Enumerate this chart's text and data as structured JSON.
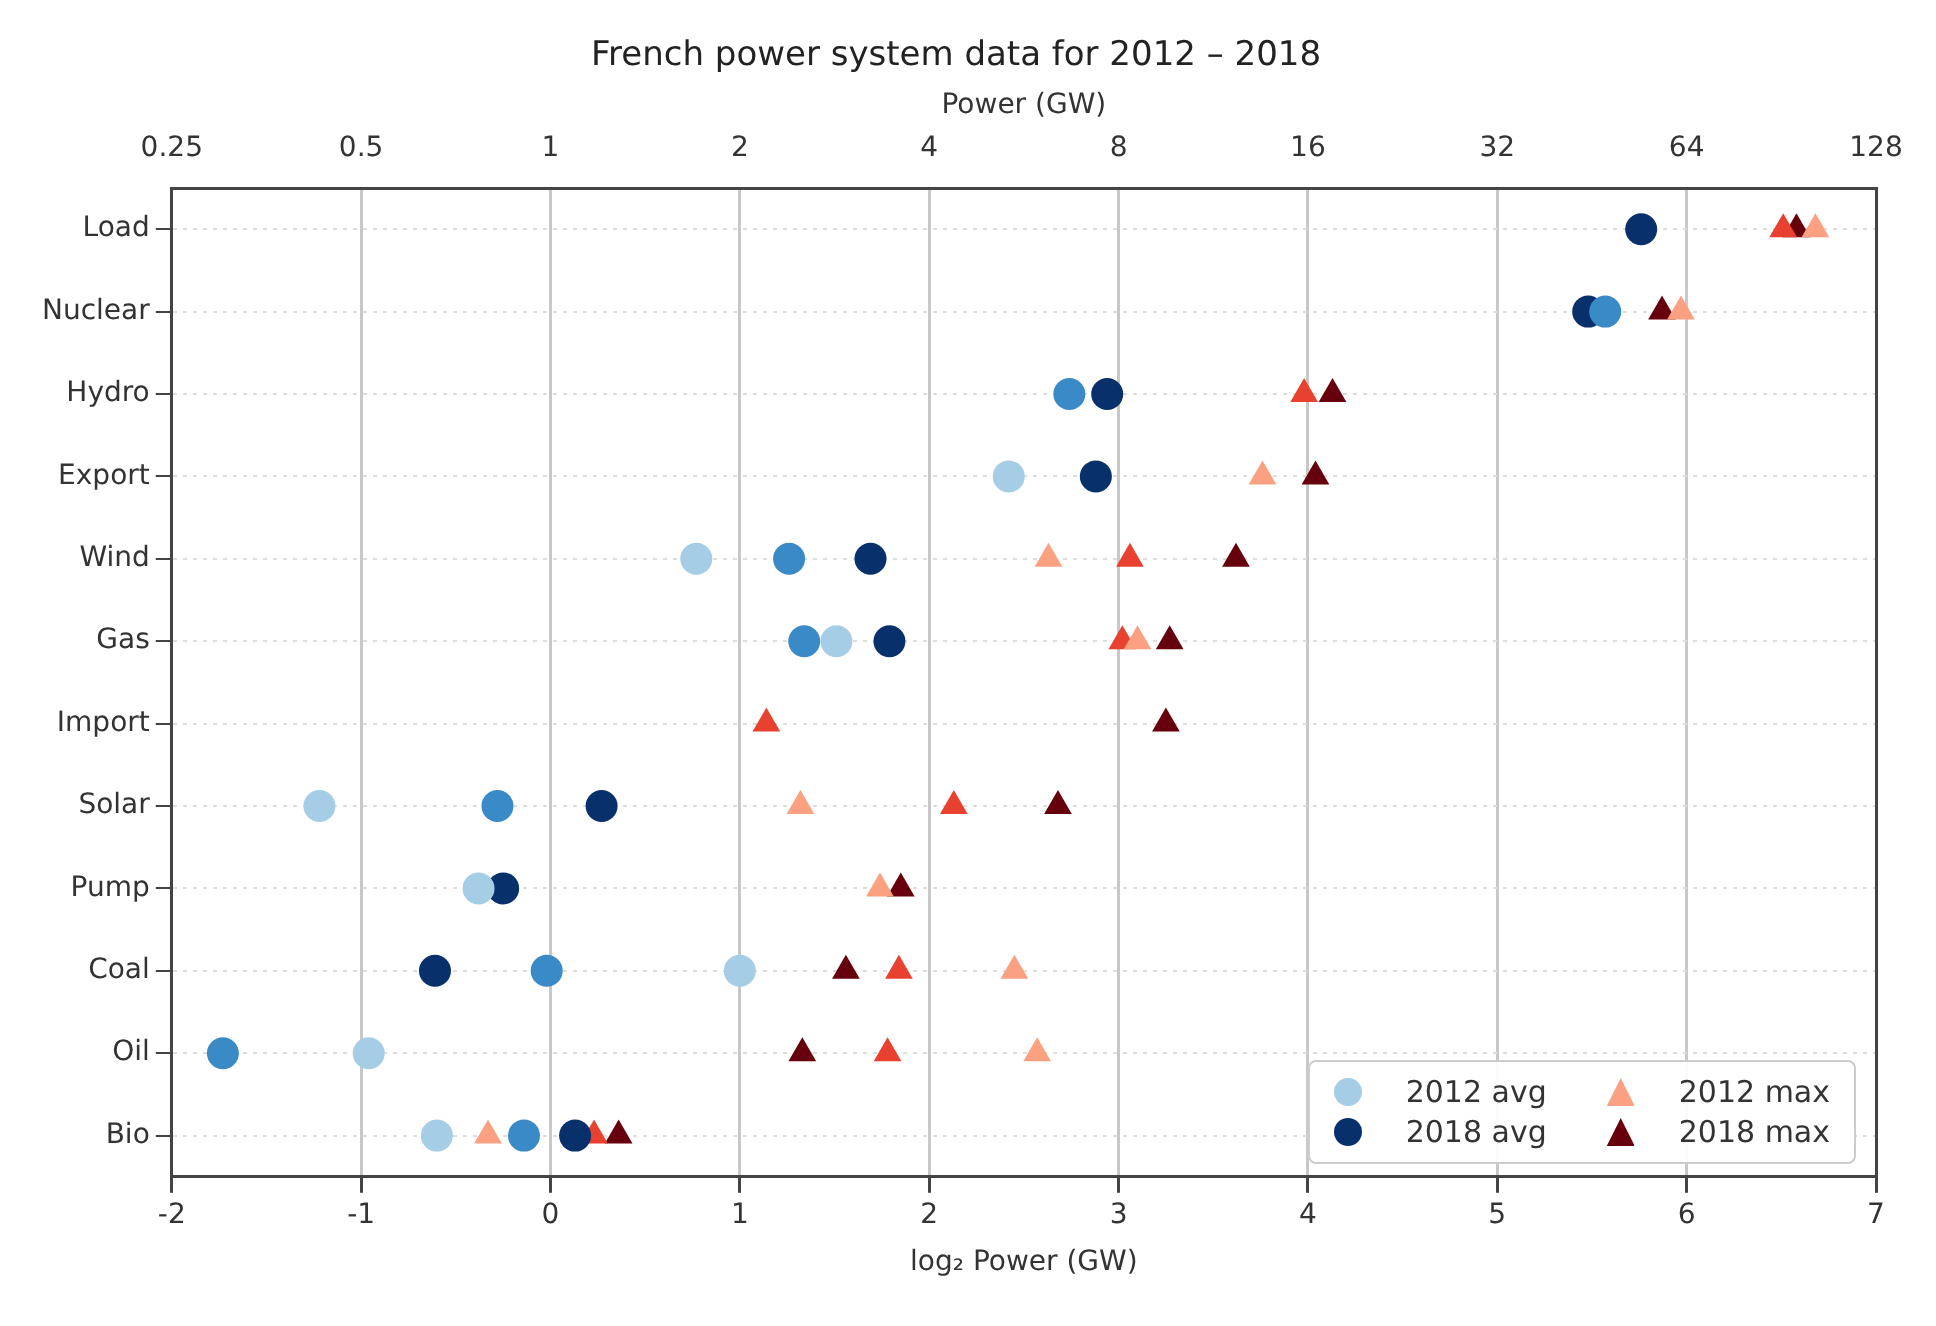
{
  "chart_data": {
    "type": "scatter",
    "title": "French power system data for 2012 – 2018",
    "xlabel": "log₂ Power (GW)",
    "x2label": "Power (GW)",
    "categories": [
      "Load",
      "Nuclear",
      "Hydro",
      "Export",
      "Wind",
      "Gas",
      "Import",
      "Solar",
      "Pump",
      "Coal",
      "Oil",
      "Bio"
    ],
    "orientation": "horizontal",
    "xlim": [
      -2,
      7
    ],
    "xticks": [
      -2,
      -1,
      0,
      1,
      2,
      3,
      4,
      5,
      6,
      7
    ],
    "x2lim": [
      0.25,
      128
    ],
    "x2ticks": [
      0.25,
      0.5,
      1,
      2,
      4,
      8,
      16,
      32,
      64,
      128
    ],
    "log": "x2",
    "grid": true,
    "legend": "bottom right",
    "series": [
      {
        "name": "2012 avg",
        "color": "#a6cde6",
        "marker": "circle",
        "values": [
          null,
          null,
          null,
          2.42,
          0.77,
          1.51,
          null,
          -1.22,
          -0.38,
          1.0,
          -0.96,
          -0.6
        ]
      },
      {
        "color": "#3a8ac8",
        "marker": "circle",
        "values": [
          null,
          5.57,
          2.74,
          null,
          1.26,
          1.34,
          null,
          -0.28,
          null,
          -0.02,
          -1.73,
          -0.14
        ]
      },
      {
        "name": "2018 avg",
        "color": "#08306b",
        "marker": "circle",
        "values": [
          5.76,
          5.48,
          2.94,
          2.88,
          1.69,
          1.79,
          null,
          0.27,
          -0.25,
          -0.61,
          null,
          0.13
        ]
      },
      {
        "name": "2012 max",
        "color": "#fca082",
        "marker": "triangle",
        "values": [
          6.68,
          5.97,
          null,
          3.76,
          2.63,
          3.1,
          null,
          1.32,
          1.74,
          2.45,
          2.57,
          -0.33
        ]
      },
      {
        "color": "#e8412f",
        "marker": "triangle",
        "values": [
          6.51,
          null,
          3.98,
          null,
          3.06,
          3.02,
          1.14,
          2.13,
          null,
          1.84,
          1.78,
          0.23
        ]
      },
      {
        "name": "2018 max",
        "color": "#67000d",
        "marker": "triangle",
        "values": [
          6.58,
          5.87,
          4.13,
          4.04,
          3.62,
          3.27,
          3.25,
          2.68,
          1.85,
          1.56,
          1.33,
          0.36
        ]
      }
    ]
  }
}
